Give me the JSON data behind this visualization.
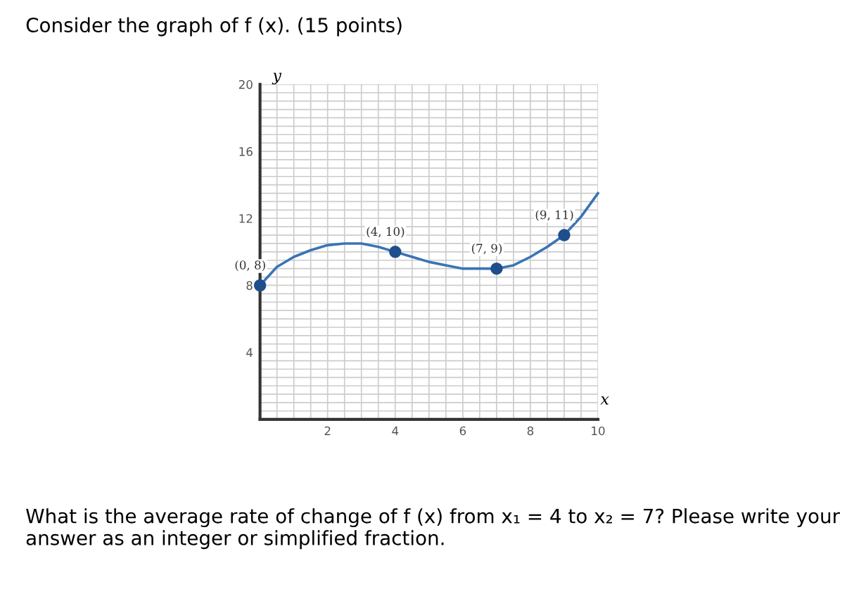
{
  "chart_data": {
    "type": "line",
    "title": "Consider the graph of f (x). (15 points)",
    "xlabel": "x",
    "ylabel": "y",
    "x": [
      0,
      0.5,
      1,
      1.5,
      2,
      2.5,
      3,
      3.5,
      4,
      4.5,
      5,
      5.5,
      6,
      6.5,
      7,
      7.5,
      8,
      8.5,
      9,
      9.5,
      10
    ],
    "series": [
      {
        "color": "#3a74b5",
        "values": [
          8,
          9.1,
          9.7,
          10.1,
          10.4,
          10.5,
          10.5,
          10.3,
          10,
          9.7,
          9.4,
          9.2,
          9.0,
          9,
          9,
          9.2,
          9.7,
          10.3,
          11,
          12.1,
          13.5
        ]
      },
      {
        "type": "scatter",
        "marker": "circle",
        "color": "#1f4e8c",
        "x": [
          0,
          4,
          7,
          9
        ],
        "values": [
          8,
          10,
          9,
          11
        ]
      }
    ],
    "annotations": [
      {
        "text": "(0, 8)",
        "x": 0,
        "y": 8
      },
      {
        "text": "(4, 10)",
        "x": 4,
        "y": 10
      },
      {
        "text": "(7, 9)",
        "x": 7,
        "y": 9
      },
      {
        "text": "(9, 11)",
        "x": 9,
        "y": 11
      },
      "What is the average rate of change of f (x) from x₁ = 4 to x₂ = 7? Please write your answer as an integer or simplified fraction."
    ],
    "xlim": [
      0,
      10
    ],
    "ylim": [
      0,
      20
    ],
    "xticks": [
      2,
      4,
      6,
      8,
      10
    ],
    "yticks": [
      4,
      8,
      12,
      16,
      20
    ],
    "grid": true
  }
}
